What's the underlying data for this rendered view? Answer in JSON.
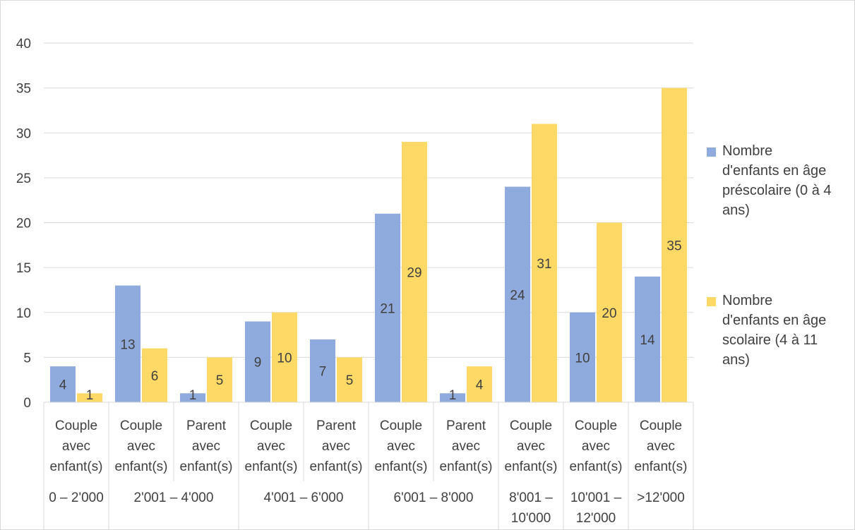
{
  "chart_data": {
    "type": "bar",
    "ylim": [
      0,
      40
    ],
    "yticks": [
      0,
      5,
      10,
      15,
      20,
      25,
      30,
      35,
      40
    ],
    "grid": true,
    "legend_position": "right",
    "categories": [
      {
        "type": "Couple avec enfant(s)",
        "income": "0 – 2'000"
      },
      {
        "type": "Couple avec enfant(s)",
        "income": "2'001 – 4'000"
      },
      {
        "type": "Parent avec enfant(s)",
        "income": "2'001 – 4'000"
      },
      {
        "type": "Couple avec enfant(s)",
        "income": "4'001 – 6'000"
      },
      {
        "type": "Parent avec enfant(s)",
        "income": "4'001 – 6'000"
      },
      {
        "type": "Couple avec enfant(s)",
        "income": "6'001 – 8'000"
      },
      {
        "type": "Parent avec enfant(s)",
        "income": "6'001 – 8'000"
      },
      {
        "type": "Couple avec enfant(s)",
        "income": "8'001 – 10'000"
      },
      {
        "type": "Couple avec enfant(s)",
        "income": "10'001 – 12'000"
      },
      {
        "type": "Couple avec enfant(s)",
        "income": ">12'000"
      }
    ],
    "type_label_lines": {
      "Couple avec enfant(s)": [
        "Couple",
        "avec",
        "enfant(s)"
      ],
      "Parent avec enfant(s)": [
        "Parent",
        "avec",
        "enfant(s)"
      ]
    },
    "income_groups": [
      {
        "label_lines": [
          "0 – 2'000"
        ],
        "span": 1
      },
      {
        "label_lines": [
          "2'001 – 4'000"
        ],
        "span": 2
      },
      {
        "label_lines": [
          "4'001 – 6'000"
        ],
        "span": 2
      },
      {
        "label_lines": [
          "6'001 – 8'000"
        ],
        "span": 2
      },
      {
        "label_lines": [
          "8'001 –",
          "10'000"
        ],
        "span": 1
      },
      {
        "label_lines": [
          "10'001 –",
          "12'000"
        ],
        "span": 1
      },
      {
        "label_lines": [
          ">12'000"
        ],
        "span": 1
      }
    ],
    "series": [
      {
        "name": "Nombre d'enfants en âge préscolaire (0 à 4 ans)",
        "legend_lines": [
          "Nombre",
          "d'enfants en âge",
          "préscolaire (0 à 4",
          "ans)"
        ],
        "color": "#8faadc",
        "values": [
          4,
          13,
          1,
          9,
          7,
          21,
          1,
          24,
          10,
          14
        ]
      },
      {
        "name": "Nombre d'enfants en âge scolaire (4 à 11 ans)",
        "legend_lines": [
          "Nombre",
          "d'enfants en âge",
          "scolaire (4 à 11",
          "ans)"
        ],
        "color": "#ffd966",
        "values": [
          1,
          6,
          5,
          10,
          5,
          29,
          4,
          31,
          20,
          35
        ]
      }
    ]
  }
}
